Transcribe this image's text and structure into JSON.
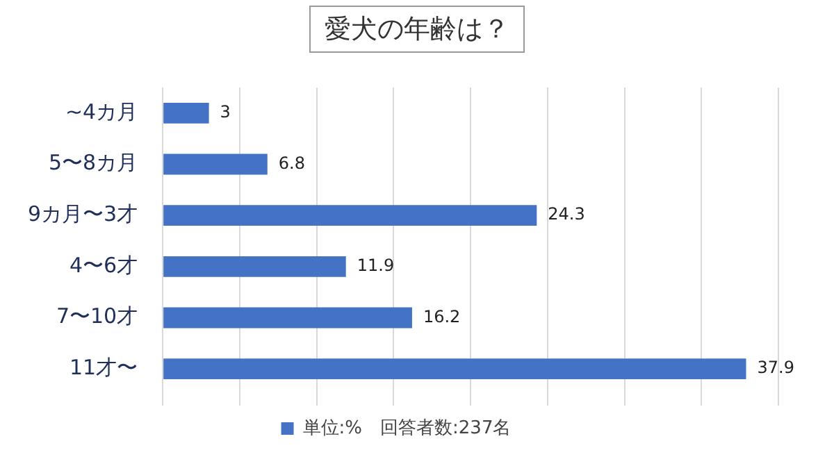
{
  "chart_data": {
    "type": "bar",
    "orientation": "horizontal",
    "title": "愛犬の年齢は？",
    "categories": [
      "~4カ月",
      "5〜8カ月",
      "9カ月〜3才",
      "4〜6才",
      "7〜10才",
      "11才〜"
    ],
    "series": [
      {
        "name": "単位:%　回答者数:237名",
        "color": "#4472c4",
        "values": [
          3,
          6.8,
          24.3,
          11.9,
          16.2,
          37.9
        ]
      }
    ],
    "xlim": [
      0,
      40
    ],
    "xticks": [
      {
        "value": 0,
        "label": null
      },
      {
        "value": 5,
        "label": null
      },
      {
        "value": 10,
        "label": null
      },
      {
        "value": 15,
        "label": null
      },
      {
        "value": 20,
        "label": null
      },
      {
        "value": 25,
        "label": null
      },
      {
        "value": 30,
        "label": null
      },
      {
        "value": 35,
        "label": null
      },
      {
        "value": 40,
        "label": null
      }
    ],
    "grid": "x",
    "legend": "bottom",
    "tick_labels": "y",
    "data_labels": true
  }
}
